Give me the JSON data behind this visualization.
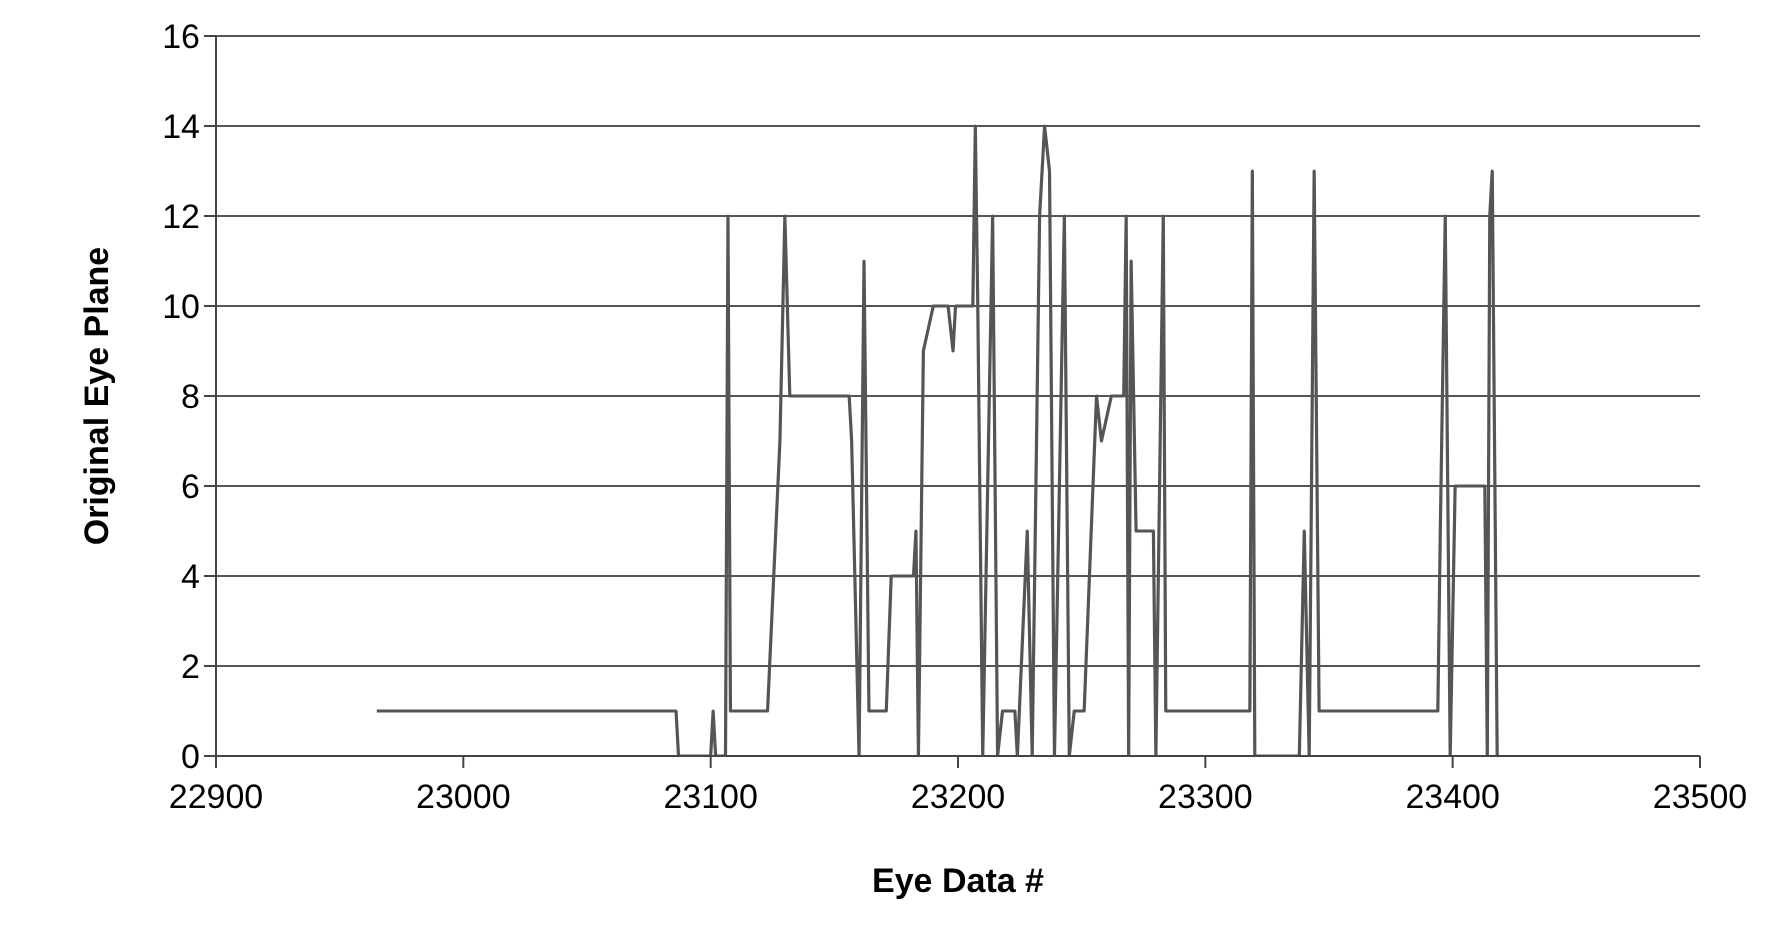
{
  "chart_data": {
    "type": "line",
    "xlabel": "Eye Data #",
    "ylabel": "Original Eye Plane",
    "x": [
      22965,
      23086,
      23087,
      23100,
      23101,
      23102,
      23106,
      23107,
      23108,
      23123,
      23128,
      23130,
      23132,
      23156,
      23157,
      23160,
      23162,
      23164,
      23171,
      23173,
      23182,
      23183,
      23184,
      23186,
      23190,
      23196,
      23198,
      23199,
      23206,
      23207,
      23208,
      23210,
      23214,
      23216,
      23218,
      23223,
      23224,
      23228,
      23230,
      23233,
      23235,
      23237,
      23239,
      23243,
      23245,
      23247,
      23251,
      23256,
      23258,
      23262,
      23267,
      23268,
      23269,
      23270,
      23272,
      23279,
      23280,
      23283,
      23284,
      23318,
      23319,
      23320,
      23338,
      23340,
      23342,
      23344,
      23346,
      23394,
      23395,
      23397,
      23399,
      23401,
      23413,
      23414,
      23415,
      23416,
      23418
    ],
    "series": [
      {
        "color": "#555555",
        "values": [
          1,
          1,
          0,
          0,
          1,
          0,
          0,
          12,
          1,
          1,
          7,
          12,
          8,
          8,
          7,
          0,
          11,
          1,
          1,
          4,
          4,
          5,
          0,
          9,
          10,
          10,
          9,
          10,
          10,
          14,
          10,
          0,
          12,
          0,
          1,
          1,
          0,
          5,
          0,
          12,
          14,
          13,
          0,
          12,
          0,
          1,
          1,
          8,
          7,
          8,
          8,
          12,
          0,
          11,
          5,
          5,
          0,
          12,
          1,
          1,
          13,
          0,
          0,
          5,
          0,
          13,
          1,
          1,
          5,
          12,
          0,
          6,
          6,
          0,
          12,
          13,
          0
        ]
      }
    ],
    "xlim": [
      22900,
      23500
    ],
    "xticks": [
      22900,
      23000,
      23100,
      23200,
      23300,
      23400,
      23500
    ],
    "ylim": [
      0,
      16
    ],
    "yticks": [
      0,
      2,
      4,
      6,
      8,
      10,
      12,
      14,
      16
    ],
    "grid": "y",
    "marker": "none",
    "line_style": "solid"
  }
}
